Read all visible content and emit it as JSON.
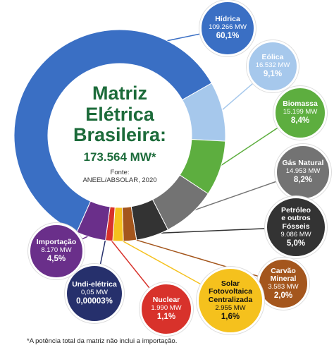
{
  "chart_data": {
    "type": "pie",
    "title": "Matriz\nElétrica\nBrasileira:",
    "total_label": "173.564 MW*",
    "source": "Fonte:\nANEEL/ABSOLAR, 2020",
    "footnote": "*A potência total da matriz não inclui a importação.",
    "categories": [
      "Hídrica",
      "Eólica",
      "Biomassa",
      "Gás Natural",
      "Petróleo\ne outros\nFósseis",
      "Carvão\nMineral",
      "Solar\nFotovoltaica\nCentralizada",
      "Nuclear",
      "Undi-elétrica",
      "Importação"
    ],
    "capacity_labels": [
      "109.266 MW",
      "16.532 MW",
      "15.199 MW",
      "14.953 MW",
      "9.086 MW",
      "3.583 MW",
      "2.955 MW",
      "1.990 MW",
      "0,05 MW",
      "8.170 MW"
    ],
    "values": [
      60.1,
      9.1,
      8.4,
      8.2,
      5.0,
      2.0,
      1.6,
      1.1,
      3e-05,
      4.5
    ],
    "value_labels": [
      "60,1%",
      "9,1%",
      "8,4%",
      "8,2%",
      "5,0%",
      "2,0%",
      "1,6%",
      "1,1%",
      "0,00003%",
      "4,5%"
    ],
    "colors": [
      "#3a6fc4",
      "#a6c8ec",
      "#5dae3f",
      "#737373",
      "#333333",
      "#a4561d",
      "#f5c11d",
      "#d8322b",
      "#26306c",
      "#6a2f8a"
    ]
  }
}
